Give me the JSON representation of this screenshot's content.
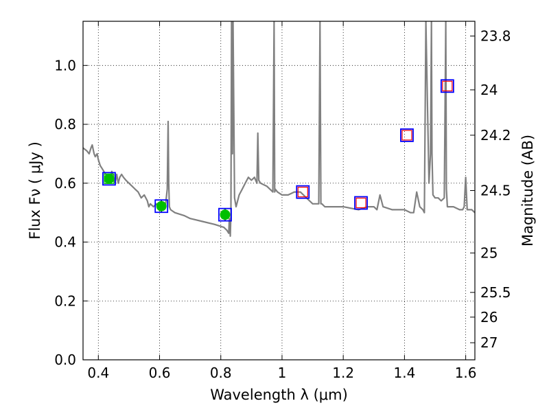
{
  "chart_data": {
    "type": "line",
    "xlabel": "Wavelength  λ (μm)",
    "ylabel": "Flux  Fν  ( μJy )",
    "ylabel_right": "Magnitude (AB)",
    "xlim": [
      0.35,
      1.63
    ],
    "ylim": [
      0.0,
      1.15
    ],
    "grid": true,
    "x_ticks": [
      0.4,
      0.6,
      0.8,
      1.0,
      1.2,
      1.4,
      1.6
    ],
    "x_tick_labels": [
      "0.4",
      "0.6",
      "0.8",
      "1",
      "1.2",
      "1.4",
      "1.6"
    ],
    "y_ticks": [
      0.0,
      0.2,
      0.4,
      0.6,
      0.8,
      1.0
    ],
    "y_tick_labels": [
      "0.0",
      "0.2",
      "0.4",
      "0.6",
      "0.8",
      "1.0"
    ],
    "right_ticks": [
      {
        "label": "23.8",
        "flux": 1.1
      },
      {
        "label": "24",
        "flux": 0.917
      },
      {
        "label": "24.2",
        "flux": 0.763
      },
      {
        "label": "24.5",
        "flux": 0.575
      },
      {
        "label": "25",
        "flux": 0.363
      },
      {
        "label": "25.5",
        "flux": 0.229
      },
      {
        "label": "26",
        "flux": 0.145
      },
      {
        "label": "27",
        "flux": 0.058
      }
    ],
    "series": [
      {
        "kind": "sed-model",
        "color": "#808080",
        "x": [
          0.35,
          0.362,
          0.37,
          0.376,
          0.38,
          0.386,
          0.39,
          0.396,
          0.4,
          0.406,
          0.412,
          0.418,
          0.424,
          0.43,
          0.436,
          0.44,
          0.444,
          0.45,
          0.455,
          0.46,
          0.465,
          0.47,
          0.476,
          0.482,
          0.49,
          0.5,
          0.51,
          0.52,
          0.53,
          0.54,
          0.55,
          0.56,
          0.565,
          0.57,
          0.58,
          0.59,
          0.6,
          0.61,
          0.62,
          0.625,
          0.628,
          0.63,
          0.632,
          0.636,
          0.65,
          0.68,
          0.7,
          0.74,
          0.78,
          0.81,
          0.82,
          0.826,
          0.828,
          0.831,
          0.833,
          0.835,
          0.838,
          0.84,
          0.845,
          0.85,
          0.86,
          0.87,
          0.88,
          0.89,
          0.9,
          0.91,
          0.918,
          0.921,
          0.924,
          0.93,
          0.95,
          0.97,
          0.974,
          0.976,
          0.978,
          0.985,
          1.0,
          1.02,
          1.04,
          1.06,
          1.08,
          1.09,
          1.1,
          1.12,
          1.124,
          1.127,
          1.13,
          1.14,
          1.16,
          1.2,
          1.25,
          1.28,
          1.3,
          1.31,
          1.32,
          1.33,
          1.36,
          1.4,
          1.42,
          1.43,
          1.44,
          1.45,
          1.46,
          1.465,
          1.47,
          1.48,
          1.485,
          1.488,
          1.49,
          1.493,
          1.5,
          1.51,
          1.52,
          1.53,
          1.535,
          1.537,
          1.54,
          1.56,
          1.58,
          1.59,
          1.595,
          1.6,
          1.605,
          1.62,
          1.63
        ],
        "y": [
          0.72,
          0.71,
          0.7,
          0.72,
          0.73,
          0.7,
          0.69,
          0.7,
          0.68,
          0.66,
          0.65,
          0.64,
          0.63,
          0.62,
          0.61,
          0.62,
          0.64,
          0.62,
          0.6,
          0.63,
          0.6,
          0.62,
          0.63,
          0.62,
          0.61,
          0.6,
          0.59,
          0.58,
          0.57,
          0.55,
          0.56,
          0.54,
          0.52,
          0.53,
          0.52,
          0.53,
          0.51,
          0.52,
          0.53,
          0.58,
          0.81,
          0.6,
          0.52,
          0.51,
          0.5,
          0.49,
          0.48,
          0.47,
          0.46,
          0.45,
          0.44,
          0.43,
          0.48,
          0.42,
          0.5,
          1.15,
          0.7,
          1.15,
          0.55,
          0.52,
          0.56,
          0.58,
          0.6,
          0.62,
          0.61,
          0.62,
          0.6,
          0.77,
          0.61,
          0.6,
          0.59,
          0.57,
          1.15,
          0.57,
          0.58,
          0.57,
          0.56,
          0.56,
          0.57,
          0.57,
          0.55,
          0.54,
          0.53,
          0.53,
          1.15,
          0.53,
          0.53,
          0.52,
          0.52,
          0.52,
          0.51,
          0.52,
          0.52,
          0.51,
          0.56,
          0.52,
          0.51,
          0.51,
          0.5,
          0.5,
          0.57,
          0.52,
          0.51,
          0.5,
          1.15,
          0.6,
          0.7,
          1.15,
          0.7,
          0.56,
          0.55,
          0.55,
          0.54,
          0.55,
          1.15,
          0.58,
          0.52,
          0.52,
          0.51,
          0.51,
          0.52,
          0.62,
          0.51,
          0.51,
          0.5
        ],
        "name": ""
      }
    ],
    "photometry": [
      {
        "x": 0.435,
        "y": 0.615,
        "open_square": "blue",
        "inner_square": "green",
        "filled_circle": "green",
        "error": 0.01
      },
      {
        "x": 0.606,
        "y": 0.522,
        "open_square": "blue",
        "inner_square": null,
        "filled_circle": "green",
        "error": 0.02
      },
      {
        "x": 0.814,
        "y": 0.493,
        "open_square": "blue",
        "inner_square": null,
        "filled_circle": "green",
        "error": 0.02
      },
      {
        "x": 1.068,
        "y": 0.57,
        "open_square": "blue",
        "inner_square": "red",
        "filled_circle": null,
        "error": 0.0
      },
      {
        "x": 1.258,
        "y": 0.533,
        "open_square": "blue",
        "inner_square": "red",
        "filled_circle": null,
        "error": 0.0
      },
      {
        "x": 1.408,
        "y": 0.763,
        "open_square": "blue",
        "inner_square": "red",
        "filled_circle": null,
        "error": 0.0
      },
      {
        "x": 1.54,
        "y": 0.93,
        "open_square": "blue",
        "inner_square": "red",
        "filled_circle": null,
        "error": 0.0
      }
    ],
    "colors": {
      "model": "#808080",
      "blue": "#0000ff",
      "green": "#00bf00",
      "red": "#ff0000",
      "grid": "#000000"
    }
  }
}
